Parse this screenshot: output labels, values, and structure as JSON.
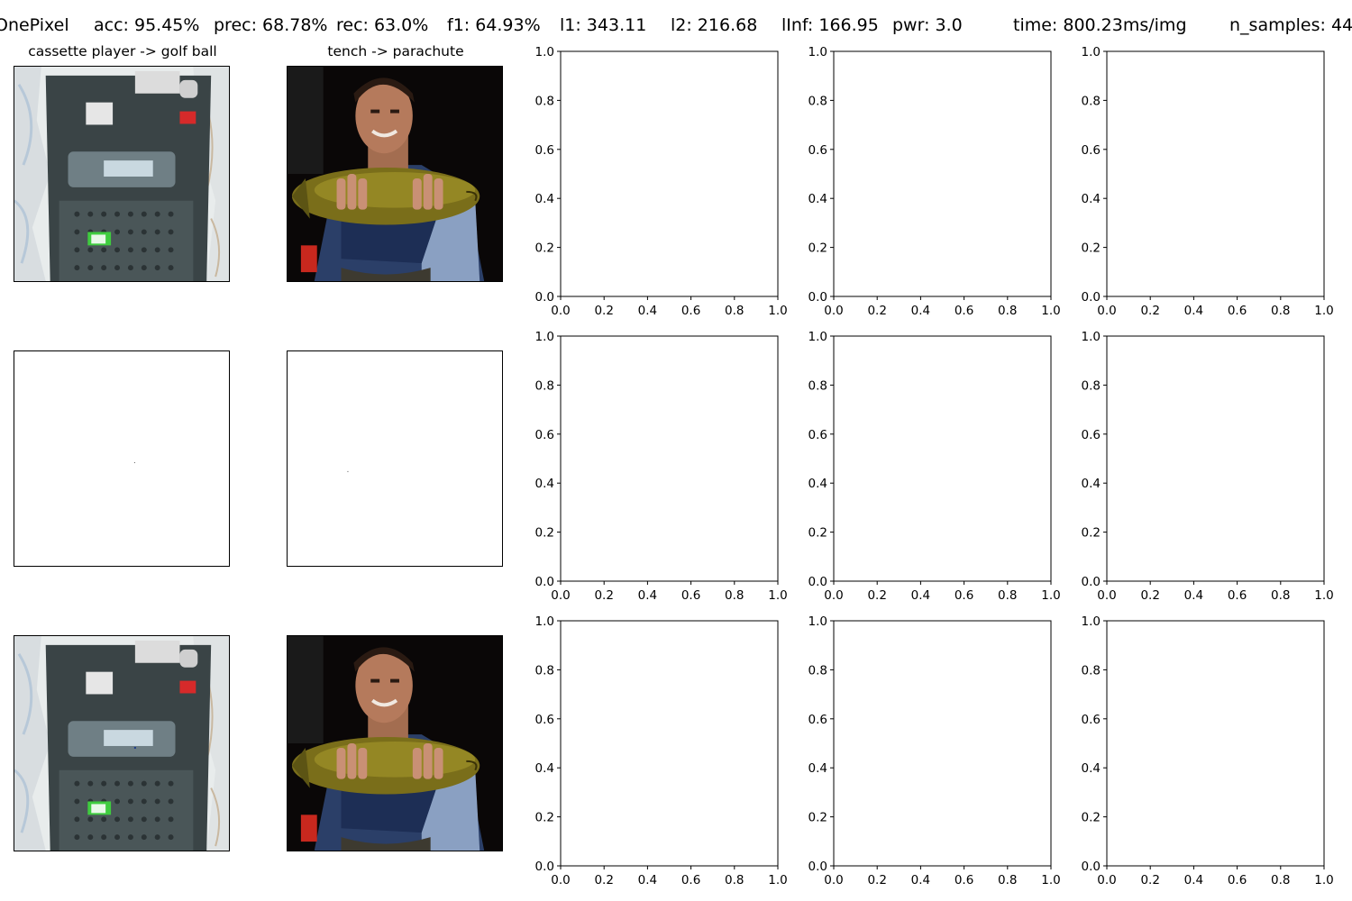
{
  "suptitle": {
    "method": "OnePixel",
    "acc": "acc: 95.45%",
    "prec": "prec: 68.78%",
    "rec": "rec: 63.0%",
    "f1": "f1: 64.93%",
    "l1": "l1: 343.11",
    "l2": "l2: 216.68",
    "linf": "lInf: 166.95",
    "pwr": "pwr: 3.0",
    "time": "time: 800.23ms/img",
    "n_samples": "n_samples: 44"
  },
  "images": {
    "col1_title": "cassette player -> golf ball",
    "col2_title": "tench -> parachute"
  },
  "chart_data": {
    "type": "grid",
    "rows": 3,
    "cols": 5,
    "empty_axes": {
      "xlim": [
        0.0,
        1.0
      ],
      "ylim": [
        0.0,
        1.0
      ],
      "xticks": [
        "0.0",
        "0.2",
        "0.4",
        "0.6",
        "0.8",
        "1.0"
      ],
      "yticks": [
        "0.0",
        "0.2",
        "0.4",
        "0.6",
        "0.8",
        "1.0"
      ],
      "grid": false
    }
  }
}
